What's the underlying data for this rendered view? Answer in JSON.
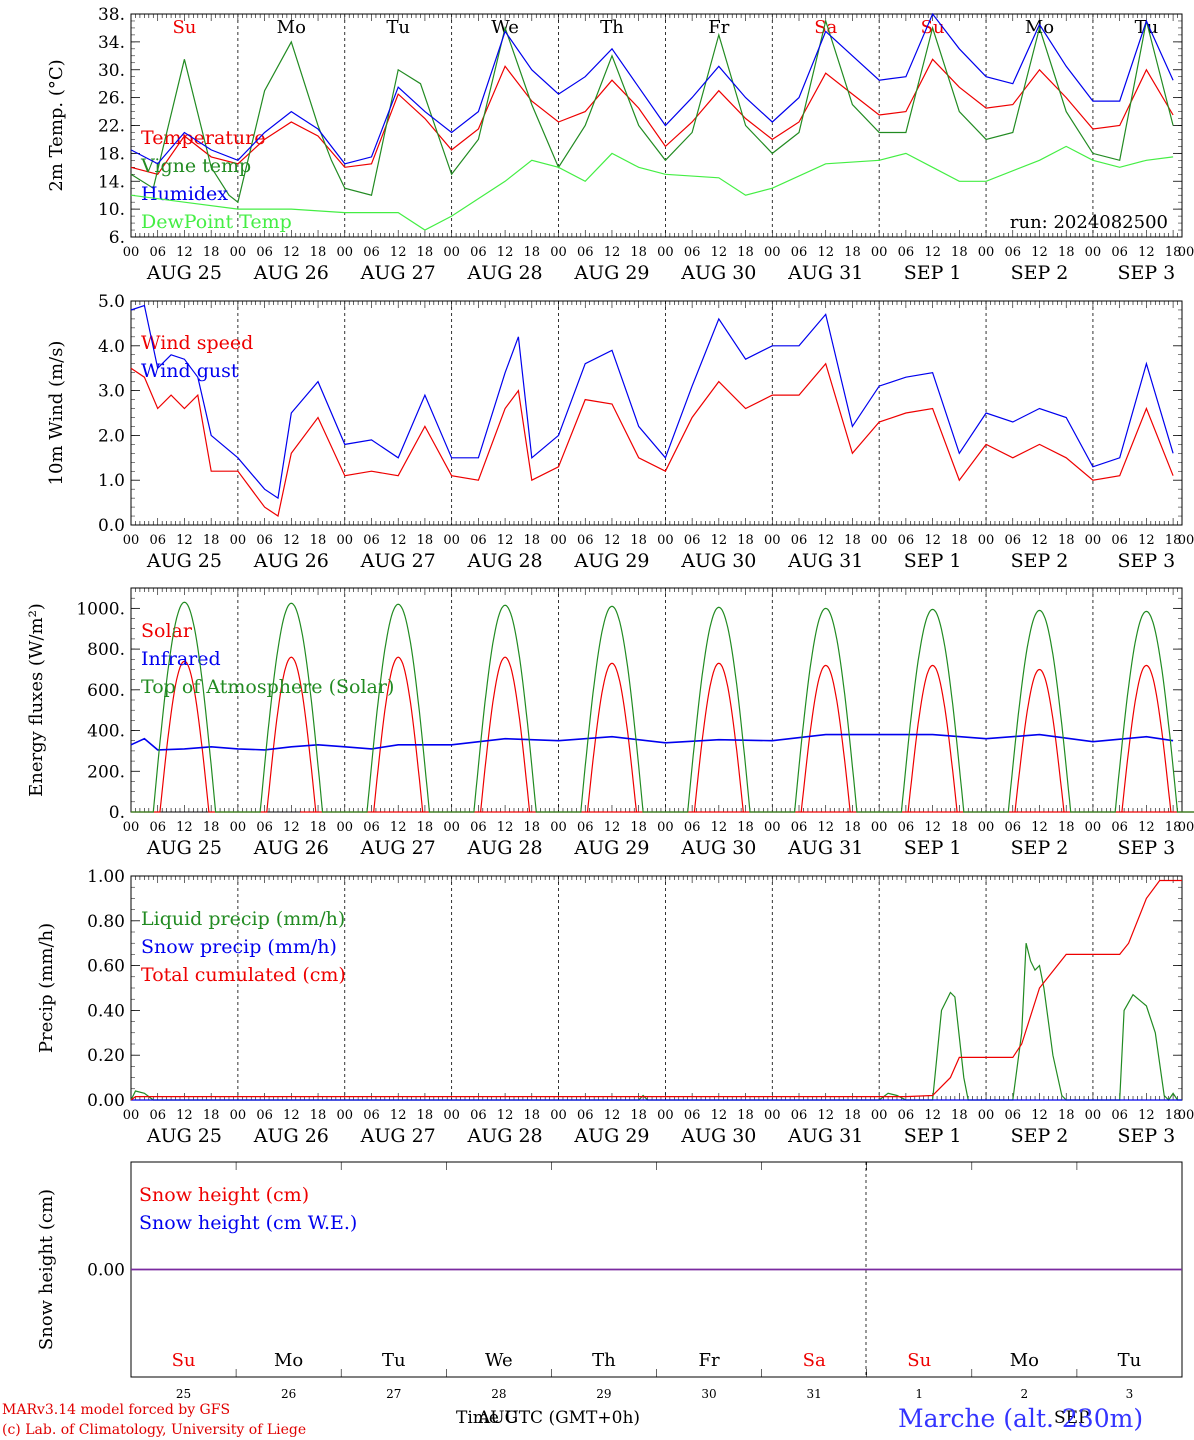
{
  "chart_data": [
    {
      "type": "line",
      "id": "temp",
      "ylabel": "2m Temp. (°C)",
      "ylim": [
        6,
        38
      ],
      "yticks": [
        "6.",
        "10.",
        "14.",
        "18.",
        "22.",
        "26.",
        "30.",
        "34.",
        "38."
      ],
      "day_labels": [
        "Su",
        "Mo",
        "Tu",
        "We",
        "Th",
        "Fr",
        "Sa",
        "Su",
        "Mo",
        "Tu"
      ],
      "run_label": "run: 2024082500",
      "x_unit": "hours since AUG 25 00 UTC",
      "series": [
        {
          "name": "Temperature",
          "color": "#ee0000",
          "x": [
            0,
            6,
            12,
            18,
            24,
            30,
            36,
            42,
            48,
            54,
            60,
            66,
            72,
            78,
            84,
            90,
            96,
            102,
            108,
            114,
            120,
            126,
            132,
            138,
            144,
            150,
            156,
            162,
            168,
            174,
            180,
            186,
            192,
            198,
            204,
            210,
            216,
            222,
            228,
            234
          ],
          "y": [
            16,
            15,
            20.5,
            17.5,
            16.5,
            20,
            22.5,
            20.5,
            16,
            16.5,
            26.5,
            23,
            18.5,
            21.5,
            30.5,
            25.5,
            22.5,
            24,
            28.5,
            24.5,
            19,
            22.5,
            27,
            23,
            20,
            22.5,
            29.5,
            26.5,
            23.5,
            24,
            31.5,
            27.5,
            24.5,
            25,
            30,
            26,
            21.5,
            22,
            30,
            23.5
          ]
        },
        {
          "name": "Vigne temp",
          "color": "#228b22",
          "x": [
            0,
            5,
            12,
            18,
            22,
            24,
            30,
            36,
            42,
            45,
            48,
            54,
            60,
            65,
            72,
            78,
            84,
            90,
            96,
            102,
            108,
            114,
            120,
            126,
            132,
            138,
            144,
            150,
            156,
            162,
            168,
            174,
            180,
            186,
            192,
            198,
            204,
            210,
            216,
            222,
            228,
            234
          ],
          "y": [
            15,
            13,
            31.5,
            16,
            12,
            11,
            27,
            34,
            22,
            17,
            13,
            12,
            30,
            28,
            15,
            20,
            36,
            25,
            16,
            22,
            32,
            22,
            17,
            21,
            35,
            22,
            18,
            21,
            37,
            25,
            21,
            21,
            36,
            24,
            20,
            21,
            36,
            24,
            18,
            17,
            37,
            22
          ]
        },
        {
          "name": "Humidex",
          "color": "#0000ee",
          "x": [
            0,
            6,
            12,
            18,
            24,
            30,
            36,
            42,
            48,
            54,
            60,
            66,
            72,
            78,
            84,
            90,
            96,
            102,
            108,
            114,
            120,
            126,
            132,
            138,
            144,
            150,
            156,
            162,
            168,
            174,
            180,
            186,
            192,
            198,
            204,
            210,
            216,
            222,
            228,
            234
          ],
          "y": [
            18.5,
            16.5,
            21,
            18.5,
            17,
            21,
            24,
            21.5,
            16.5,
            17.5,
            27.5,
            24,
            21,
            24,
            35.5,
            30,
            26.5,
            29,
            33,
            27.5,
            22,
            26,
            30.5,
            26,
            22.5,
            26,
            35.5,
            32,
            28.5,
            29,
            38,
            33,
            29,
            28,
            36.5,
            30.5,
            25.5,
            25.5,
            37,
            28.5
          ]
        },
        {
          "name": "DewPoint Temp",
          "color": "#44ee44",
          "x": [
            0,
            12,
            24,
            36,
            48,
            60,
            66,
            72,
            84,
            90,
            96,
            102,
            108,
            114,
            120,
            132,
            138,
            144,
            156,
            168,
            174,
            180,
            186,
            192,
            204,
            210,
            216,
            222,
            228,
            234
          ],
          "y": [
            12,
            11,
            10,
            10,
            9.5,
            9.5,
            7,
            9,
            14,
            17,
            16,
            14,
            18,
            16,
            15,
            14.5,
            12,
            13,
            16.5,
            17,
            18,
            16,
            14,
            14,
            17,
            19,
            17,
            16,
            17,
            17.5
          ]
        }
      ]
    },
    {
      "type": "line",
      "id": "wind",
      "ylabel": "10m Wind (m/s)",
      "ylim": [
        0,
        5
      ],
      "yticks": [
        "0.0",
        "1.0",
        "2.0",
        "3.0",
        "4.0",
        "5.0"
      ],
      "x_unit": "hours since AUG 25 00 UTC",
      "series": [
        {
          "name": "Wind speed",
          "color": "#ee0000",
          "x": [
            0,
            3,
            6,
            9,
            12,
            15,
            18,
            24,
            30,
            33,
            36,
            42,
            48,
            54,
            60,
            66,
            72,
            78,
            84,
            87,
            90,
            96,
            102,
            108,
            114,
            120,
            126,
            132,
            138,
            144,
            150,
            156,
            162,
            168,
            174,
            180,
            186,
            192,
            198,
            204,
            210,
            216,
            222,
            228,
            234
          ],
          "y": [
            3.5,
            3.3,
            2.6,
            2.9,
            2.6,
            2.9,
            1.2,
            1.2,
            0.4,
            0.2,
            1.6,
            2.4,
            1.1,
            1.2,
            1.1,
            2.2,
            1.1,
            1.0,
            2.6,
            3.0,
            1.0,
            1.3,
            2.8,
            2.7,
            1.5,
            1.2,
            2.4,
            3.2,
            2.6,
            2.9,
            2.9,
            3.6,
            1.6,
            2.3,
            2.5,
            2.6,
            1.0,
            1.8,
            1.5,
            1.8,
            1.5,
            1.0,
            1.1,
            2.6,
            1.1
          ]
        },
        {
          "name": "Wind gust",
          "color": "#0000ee",
          "x": [
            0,
            3,
            6,
            9,
            12,
            15,
            18,
            24,
            30,
            33,
            36,
            42,
            48,
            54,
            60,
            66,
            72,
            78,
            84,
            87,
            90,
            96,
            102,
            108,
            114,
            120,
            126,
            132,
            138,
            144,
            150,
            156,
            162,
            168,
            174,
            180,
            186,
            192,
            198,
            204,
            210,
            216,
            222,
            228,
            234
          ],
          "y": [
            4.8,
            4.9,
            3.5,
            3.8,
            3.7,
            3.3,
            2.0,
            1.5,
            0.8,
            0.6,
            2.5,
            3.2,
            1.8,
            1.9,
            1.5,
            2.9,
            1.5,
            1.5,
            3.4,
            4.2,
            1.5,
            2.0,
            3.6,
            3.9,
            2.2,
            1.5,
            3.1,
            4.6,
            3.7,
            4.0,
            4.0,
            4.7,
            2.2,
            3.1,
            3.3,
            3.4,
            1.6,
            2.5,
            2.3,
            2.6,
            2.4,
            1.3,
            1.5,
            3.6,
            1.6
          ]
        }
      ]
    },
    {
      "type": "line",
      "id": "energy",
      "ylabel": "Energy fluxes (W/m²)",
      "ylim": [
        0,
        1100
      ],
      "yticks": [
        "0.",
        "200.",
        "400.",
        "600.",
        "800.",
        "1000."
      ],
      "x_unit": "hours since AUG 25 00 UTC",
      "series": [
        {
          "name": "Solar",
          "color": "#ee0000",
          "daily_peaks": [
            740,
            760,
            760,
            760,
            730,
            730,
            720,
            720,
            700,
            720
          ]
        },
        {
          "name": "Infrared",
          "color": "#0000ee",
          "x": [
            0,
            3,
            6,
            12,
            18,
            24,
            30,
            36,
            42,
            48,
            54,
            60,
            72,
            84,
            96,
            108,
            120,
            132,
            144,
            156,
            168,
            180,
            192,
            204,
            216,
            228,
            234
          ],
          "y": [
            330,
            360,
            305,
            310,
            320,
            310,
            305,
            320,
            330,
            320,
            310,
            330,
            330,
            360,
            350,
            370,
            340,
            355,
            350,
            380,
            380,
            380,
            360,
            380,
            345,
            370,
            350
          ]
        },
        {
          "name": "Top of Atmosphere (Solar)",
          "color": "#228b22",
          "daily_peaks": [
            1030,
            1025,
            1020,
            1015,
            1010,
            1005,
            1000,
            995,
            990,
            985
          ]
        }
      ]
    },
    {
      "type": "line",
      "id": "precip",
      "ylabel": "Precip (mm/h)",
      "ylim": [
        0,
        1.0
      ],
      "yticks": [
        "0.00",
        "0.20",
        "0.40",
        "0.60",
        "0.80",
        "1.00"
      ],
      "x_unit": "hours since AUG 25 00 UTC",
      "series": [
        {
          "name": "Liquid precip (mm/h)",
          "color": "#228b22",
          "x": [
            0,
            1,
            3,
            5,
            6,
            114,
            115,
            116,
            117,
            168,
            170,
            172,
            174,
            175,
            176,
            180,
            182,
            184,
            185,
            187,
            188,
            190,
            198,
            200,
            201,
            202,
            203,
            204,
            205,
            207,
            209,
            210,
            222,
            223,
            225,
            228,
            230,
            232,
            233,
            234,
            235,
            236
          ],
          "y": [
            0,
            0.04,
            0.03,
            0,
            0,
            0,
            0.02,
            0,
            0,
            0,
            0.03,
            0.02,
            0,
            0,
            0,
            0,
            0.4,
            0.48,
            0.46,
            0.1,
            0,
            0,
            0,
            0.3,
            0.7,
            0.62,
            0.58,
            0.6,
            0.5,
            0.2,
            0.02,
            0,
            0,
            0.4,
            0.47,
            0.42,
            0.3,
            0.02,
            0,
            0.03,
            0,
            0
          ]
        },
        {
          "name": "Snow precip (mm/h)",
          "color": "#0000ee",
          "x": [
            0,
            236
          ],
          "y": [
            0,
            0
          ]
        },
        {
          "name": "Total cumulated (cm)",
          "color": "#ee0000",
          "x": [
            0,
            1,
            174,
            180,
            184,
            186,
            198,
            200,
            204,
            210,
            222,
            224,
            228,
            231,
            236
          ],
          "y": [
            0,
            0.015,
            0.015,
            0.02,
            0.1,
            0.19,
            0.19,
            0.25,
            0.5,
            0.65,
            0.65,
            0.7,
            0.9,
            0.98,
            0.98
          ]
        }
      ]
    },
    {
      "type": "line",
      "id": "snow",
      "ylabel": "Snow height (cm)",
      "yticks": [
        "0.00"
      ],
      "x_unit": "hours since AUG 25 00 UTC",
      "series": [
        {
          "name": "Snow height (cm)",
          "color": "#ee0000",
          "x": [
            0,
            236
          ],
          "y": [
            0,
            0
          ]
        },
        {
          "name": "Snow height (cm W.E.)",
          "color": "#0000ee",
          "x": [
            0,
            236
          ],
          "y": [
            0,
            0
          ]
        }
      ]
    }
  ],
  "x_axis": {
    "hour_ticks": [
      "00",
      "06",
      "12",
      "18"
    ],
    "end_tick": "00",
    "dates": [
      "AUG 25",
      "AUG 26",
      "AUG 27",
      "AUG 28",
      "AUG 29",
      "AUG 30",
      "AUG 31",
      "SEP  1",
      "SEP  2",
      "SEP  3"
    ],
    "bottom_days": [
      "Su",
      "Mo",
      "Tu",
      "We",
      "Th",
      "Fr",
      "Sa",
      "Su",
      "Mo",
      "Tu"
    ],
    "bottom_dates": [
      "25",
      "26",
      "27",
      "28",
      "29",
      "30",
      "31",
      "1",
      "2",
      "3"
    ],
    "weekend_color": "#ee0000"
  },
  "footer": {
    "credit_line1": "MARv3.14 model forced by GFS",
    "credit_line2": "(c) Lab. of Climatology, University of Liege",
    "time_label": "Time UTC (GMT+0h)",
    "month_label_1": "AUG",
    "month_label_2": "SEP",
    "station": "Marche (alt. 230m)"
  }
}
